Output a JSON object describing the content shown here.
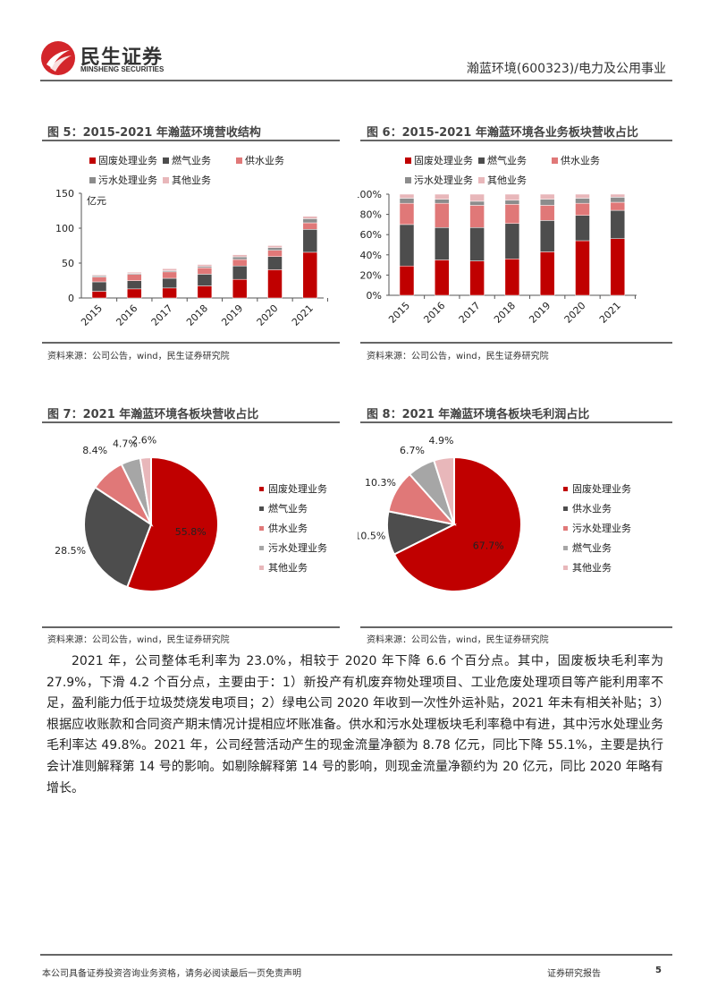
{
  "header": {
    "logo_cn": "民生证券",
    "logo_en": "MINSHENG SECURITIES",
    "report_subject": "瀚蓝环境(600323)/电力及公用事业"
  },
  "colors": {
    "red": "#C00000",
    "dark": "#4D4D4D",
    "pink": "#E07878",
    "gray": "#8C8C8C",
    "lightgray": "#A6A6A6",
    "lightpink": "#E8B7BA"
  },
  "source_text": "资料来源：公司公告，wind，民生证券研究院",
  "chart_data": [
    {
      "id": "fig5",
      "type": "bar",
      "stacked": true,
      "title": "图 5：2015-2021 年瀚蓝环境营收结构",
      "ylabel": "亿元",
      "ylim": [
        0,
        150
      ],
      "yticks": [
        "0",
        "50",
        "100",
        "150"
      ],
      "categories": [
        "2015",
        "2016",
        "2017",
        "2018",
        "2019",
        "2020",
        "2021"
      ],
      "legend": [
        "固废处理业务",
        "燃气业务",
        "供水业务",
        "污水处理业务",
        "其他业务"
      ],
      "series": [
        {
          "name": "固废处理业务",
          "color": "#C00000",
          "values": [
            9.6,
            13.0,
            14.3,
            17.3,
            26.7,
            40.5,
            65.5
          ]
        },
        {
          "name": "燃气业务",
          "color": "#4D4D4D",
          "values": [
            13.5,
            11.8,
            13.9,
            16.8,
            19.2,
            18.8,
            32.8
          ]
        },
        {
          "name": "供水业务",
          "color": "#E07878",
          "values": [
            6.9,
            8.9,
            9.2,
            9.1,
            9.3,
            9.0,
            9.4
          ]
        },
        {
          "name": "污水处理业务",
          "color": "#8C8C8C",
          "values": [
            1.7,
            1.5,
            1.7,
            1.9,
            3.7,
            3.8,
            5.9
          ]
        },
        {
          "name": "其他业务",
          "color": "#E8B7BA",
          "values": [
            1.3,
            1.8,
            2.9,
            2.9,
            3.1,
            3.0,
            3.5
          ]
        }
      ]
    },
    {
      "id": "fig6",
      "type": "bar",
      "stacked": true,
      "title": "图 6：2015-2021 年瀚蓝环境各业务板块营收占比",
      "ylim": [
        0,
        100
      ],
      "yticks": [
        "0%",
        "20%",
        "40%",
        "60%",
        "80%",
        "100%"
      ],
      "categories": [
        "2015",
        "2016",
        "2017",
        "2018",
        "2019",
        "2020",
        "2021"
      ],
      "legend": [
        "固废处理业务",
        "燃气业务",
        "供水业务",
        "污水处理业务",
        "其他业务"
      ],
      "series": [
        {
          "name": "固废处理业务",
          "color": "#C00000",
          "values": [
            29,
            35,
            34,
            36,
            43,
            54,
            56
          ]
        },
        {
          "name": "燃气业务",
          "color": "#4D4D4D",
          "values": [
            41,
            32,
            33,
            35,
            31,
            25,
            28
          ]
        },
        {
          "name": "供水业务",
          "color": "#E07878",
          "values": [
            21,
            24,
            22,
            19,
            15,
            12,
            8
          ]
        },
        {
          "name": "污水处理业务",
          "color": "#8C8C8C",
          "values": [
            5,
            4,
            4,
            4,
            6,
            5,
            5
          ]
        },
        {
          "name": "其他业务",
          "color": "#E8B7BA",
          "values": [
            4,
            5,
            7,
            6,
            5,
            4,
            3
          ]
        }
      ]
    },
    {
      "id": "fig7",
      "type": "pie",
      "title": "图 7：2021 年瀚蓝环境各板块营收占比",
      "legend": [
        "固废处理业务",
        "燃气业务",
        "供水业务",
        "污水处理业务",
        "其他业务"
      ],
      "values": [
        55.8,
        28.5,
        8.4,
        4.7,
        2.6
      ],
      "labels": [
        "55.8%",
        "28.5%",
        "8.4%",
        "4.7%",
        "2.6%"
      ],
      "colors": [
        "#C00000",
        "#4D4D4D",
        "#E07878",
        "#A6A6A6",
        "#E8B7BA"
      ]
    },
    {
      "id": "fig8",
      "type": "pie",
      "title": "图 8：2021 年瀚蓝环境各板块毛利润占比",
      "legend": [
        "固废处理业务",
        "供水业务",
        "污水处理业务",
        "燃气业务",
        "其他业务"
      ],
      "values": [
        67.7,
        10.5,
        10.3,
        6.7,
        4.9
      ],
      "labels": [
        "67.7%",
        "10.5%",
        "10.3%",
        "6.7%",
        "4.9%"
      ],
      "colors": [
        "#C00000",
        "#4D4D4D",
        "#E07878",
        "#A6A6A6",
        "#E8B7BA"
      ]
    }
  ],
  "body": {
    "paragraph": "2021 年，公司整体毛利率为 23.0%，相较于 2020 年下降 6.6 个百分点。其中，固废板块毛利率为 27.9%，下滑 4.2 个百分点，主要由于：1）新投产有机废弃物处理项目、工业危废处理项目等产能利用率不足，盈利能力低于垃圾焚烧发电项目；2）绿电公司 2020 年收到一次性外运补贴，2021 年未有相关补贴；3）根据应收账款和合同资产期末情况计提相应坏账准备。供水和污水处理板块毛利率稳中有进，其中污水处理业务毛利率达 49.8%。2021 年，公司经营活动产生的现金流量净额为 8.78 亿元，同比下降 55.1%，主要是执行会计准则解释第 14 号的影响。如剔除解释第 14 号的影响，则现金流量净额约为 20 亿元，同比 2020 年略有增长。"
  },
  "footer": {
    "disclaimer": "本公司具备证券投资咨询业务资格，请务必阅读最后一页免责声明",
    "report_type": "证券研究报告",
    "page_number": "5"
  }
}
